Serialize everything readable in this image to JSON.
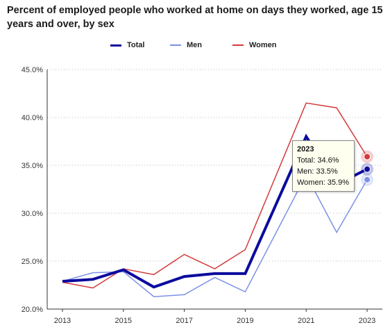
{
  "title": "Percent of employed people who worked at home on days they worked, age 15 years and over, by sex",
  "tooltip": {
    "year": "2023",
    "total": "Total: 34.6%",
    "men": "Men: 33.5%",
    "women": "Women: 35.9%"
  },
  "chart_data": {
    "type": "line",
    "title": "Percent of employed people who worked at home on days they worked, age 15 years and over, by sex",
    "x": [
      2013,
      2014,
      2015,
      2016,
      2017,
      2018,
      2019,
      2021,
      2022,
      2023
    ],
    "x_tick_labels": [
      "2013",
      "2015",
      "2017",
      "2019",
      "2021",
      "2023"
    ],
    "y_tick_labels": [
      "20.0%",
      "25.0%",
      "30.0%",
      "35.0%",
      "40.0%",
      "45.0%"
    ],
    "ylim": [
      20,
      45
    ],
    "grid": true,
    "legend_position": "top-center",
    "series": [
      {
        "name": "Total",
        "color": "#0b0b9e",
        "values": [
          22.9,
          23.1,
          24.1,
          22.3,
          23.4,
          23.7,
          23.7,
          38.0,
          33.0,
          34.6
        ]
      },
      {
        "name": "Men",
        "color": "#7b90e6",
        "values": [
          22.9,
          23.8,
          23.9,
          21.3,
          21.5,
          23.3,
          21.8,
          34.0,
          28.0,
          33.5
        ]
      },
      {
        "name": "Women",
        "color": "#d23a3a",
        "values": [
          22.8,
          22.2,
          24.2,
          23.6,
          25.7,
          24.2,
          26.2,
          41.5,
          41.0,
          35.9
        ]
      }
    ]
  }
}
